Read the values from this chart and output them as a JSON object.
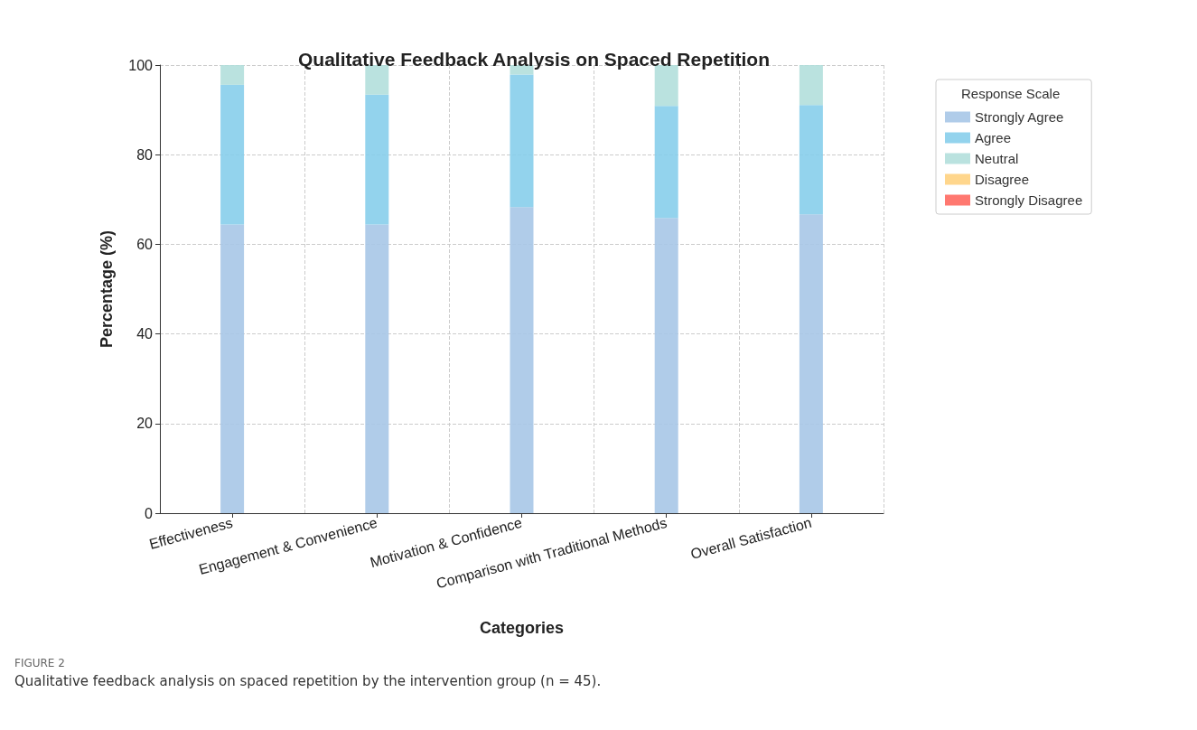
{
  "chart_data": {
    "type": "bar",
    "stacked": true,
    "title": "Qualitative Feedback Analysis on Spaced Repetition",
    "xlabel": "Categories",
    "ylabel": "Percentage (%)",
    "legend_title": "Response Scale",
    "categories": [
      "Effectiveness",
      "Engagement & Convenience",
      "Motivation & Confidence",
      "Comparison with Traditional Methods",
      "Overall Satisfaction"
    ],
    "series": [
      {
        "name": "Strongly Agree",
        "color": "#a7c7e7",
        "values": [
          64.4,
          64.4,
          68.3,
          65.9,
          66.7
        ]
      },
      {
        "name": "Agree",
        "color": "#87ceeb",
        "values": [
          31.2,
          29.0,
          29.6,
          25.0,
          24.4
        ]
      },
      {
        "name": "Neutral",
        "color": "#b2dfdb",
        "values": [
          4.4,
          6.6,
          2.1,
          9.1,
          8.9
        ]
      },
      {
        "name": "Disagree",
        "color": "#ffd27f",
        "values": [
          0,
          0,
          0,
          0,
          0
        ]
      },
      {
        "name": "Strongly Disagree",
        "color": "#ff6961",
        "values": [
          0,
          0,
          0,
          0,
          0
        ]
      }
    ],
    "ylim": [
      0,
      100
    ],
    "yticks": [
      0,
      20,
      40,
      60,
      80,
      100
    ],
    "grid": true,
    "legend": "top right",
    "annotations": [
      "FIGURE 2",
      "Qualitative feedback analysis on spaced repetition by the intervention group (n = 45)."
    ]
  }
}
